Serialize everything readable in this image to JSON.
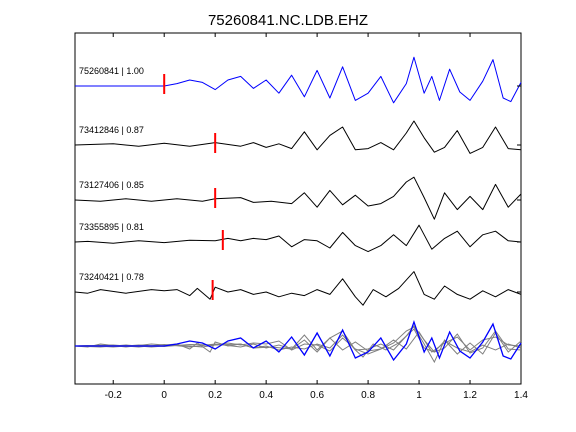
{
  "chart_data": {
    "type": "line",
    "title": "75260841.NC.LDB.EHZ",
    "xlabel": "",
    "ylabel": "",
    "xlim": [
      -0.35,
      1.4
    ],
    "xticks": [
      -0.2,
      0,
      0.2,
      0.4,
      0.6,
      0.8,
      1,
      1.2,
      1.4
    ],
    "xtick_labels": [
      "-0.2",
      "0",
      "0.2",
      "0.4",
      "0.6",
      "0.8",
      "1",
      "1.2",
      "1.4"
    ],
    "grid": false,
    "colors": {
      "master": "#0000ff",
      "trace": "#000000",
      "pick": "#ff0000",
      "overlay": "#808080"
    },
    "series": [
      {
        "label": "75260841 | 1.00",
        "pick_time": 0.0,
        "color": "#0000ff",
        "trace": [
          [
            -0.35,
            0
          ],
          [
            0,
            0
          ],
          [
            0.05,
            0.2
          ],
          [
            0.1,
            0.5
          ],
          [
            0.15,
            0.3
          ],
          [
            0.2,
            -0.3
          ],
          [
            0.25,
            0.5
          ],
          [
            0.3,
            0.8
          ],
          [
            0.35,
            -0.2
          ],
          [
            0.4,
            0.5
          ],
          [
            0.45,
            -0.6
          ],
          [
            0.5,
            0.9
          ],
          [
            0.55,
            -0.9
          ],
          [
            0.6,
            1.3
          ],
          [
            0.65,
            -1.0
          ],
          [
            0.7,
            1.6
          ],
          [
            0.75,
            -1.2
          ],
          [
            0.8,
            -0.6
          ],
          [
            0.85,
            0.8
          ],
          [
            0.9,
            -1.4
          ],
          [
            0.95,
            0.2
          ],
          [
            0.98,
            2.4
          ],
          [
            1.02,
            -0.6
          ],
          [
            1.05,
            0.8
          ],
          [
            1.08,
            -1.2
          ],
          [
            1.12,
            1.4
          ],
          [
            1.16,
            -0.5
          ],
          [
            1.2,
            -1.2
          ],
          [
            1.25,
            0.4
          ],
          [
            1.29,
            2.2
          ],
          [
            1.33,
            -1.0
          ],
          [
            1.36,
            -1.3
          ],
          [
            1.4,
            0.3
          ]
        ]
      },
      {
        "label": "73412846 | 0.87",
        "pick_time": 0.2,
        "color": "#000000",
        "trace": [
          [
            -0.35,
            0
          ],
          [
            -0.2,
            0.1
          ],
          [
            -0.1,
            -0.1
          ],
          [
            0,
            0.15
          ],
          [
            0.1,
            -0.1
          ],
          [
            0.2,
            0.2
          ],
          [
            0.3,
            -0.1
          ],
          [
            0.35,
            0.2
          ],
          [
            0.4,
            -0.2
          ],
          [
            0.45,
            0.1
          ],
          [
            0.5,
            -0.3
          ],
          [
            0.55,
            1.1
          ],
          [
            0.6,
            -0.4
          ],
          [
            0.65,
            0.8
          ],
          [
            0.7,
            1.5
          ],
          [
            0.75,
            -0.4
          ],
          [
            0.8,
            -0.3
          ],
          [
            0.85,
            0.2
          ],
          [
            0.9,
            -0.4
          ],
          [
            0.95,
            1.0
          ],
          [
            0.98,
            2.0
          ],
          [
            1.02,
            0.6
          ],
          [
            1.06,
            -0.6
          ],
          [
            1.1,
            -0.2
          ],
          [
            1.15,
            1.2
          ],
          [
            1.2,
            -0.7
          ],
          [
            1.25,
            -0.2
          ],
          [
            1.3,
            1.5
          ],
          [
            1.35,
            -0.3
          ],
          [
            1.4,
            -0.4
          ]
        ]
      },
      {
        "label": "73127406 | 0.85",
        "pick_time": 0.2,
        "color": "#000000",
        "trace": [
          [
            -0.35,
            0
          ],
          [
            -0.25,
            -0.1
          ],
          [
            -0.15,
            0.1
          ],
          [
            -0.05,
            -0.1
          ],
          [
            0.05,
            0.1
          ],
          [
            0.15,
            -0.1
          ],
          [
            0.2,
            0.1
          ],
          [
            0.3,
            0.2
          ],
          [
            0.35,
            -0.2
          ],
          [
            0.42,
            -0.1
          ],
          [
            0.5,
            -0.3
          ],
          [
            0.55,
            0.6
          ],
          [
            0.6,
            -0.6
          ],
          [
            0.65,
            0.8
          ],
          [
            0.7,
            -0.4
          ],
          [
            0.75,
            0.4
          ],
          [
            0.8,
            -0.5
          ],
          [
            0.85,
            -0.3
          ],
          [
            0.9,
            0.3
          ],
          [
            0.95,
            1.5
          ],
          [
            0.98,
            1.9
          ],
          [
            1.02,
            0.2
          ],
          [
            1.06,
            -1.6
          ],
          [
            1.1,
            0.6
          ],
          [
            1.15,
            -0.8
          ],
          [
            1.2,
            0.3
          ],
          [
            1.25,
            -0.8
          ],
          [
            1.3,
            1.3
          ],
          [
            1.35,
            -0.6
          ],
          [
            1.4,
            0.5
          ]
        ]
      },
      {
        "label": "73355895 | 0.81",
        "pick_time": 0.23,
        "color": "#000000",
        "trace": [
          [
            -0.35,
            0
          ],
          [
            -0.3,
            0.05
          ],
          [
            -0.2,
            -0.1
          ],
          [
            -0.1,
            0.1
          ],
          [
            0,
            -0.05
          ],
          [
            0.1,
            0.15
          ],
          [
            0.2,
            0.1
          ],
          [
            0.25,
            0.3
          ],
          [
            0.3,
            0.1
          ],
          [
            0.35,
            0.3
          ],
          [
            0.4,
            0.2
          ],
          [
            0.45,
            0.5
          ],
          [
            0.5,
            -0.4
          ],
          [
            0.55,
            0.2
          ],
          [
            0.6,
            0.1
          ],
          [
            0.65,
            -0.5
          ],
          [
            0.7,
            0.8
          ],
          [
            0.75,
            -0.3
          ],
          [
            0.8,
            -0.8
          ],
          [
            0.85,
            -0.3
          ],
          [
            0.9,
            0.6
          ],
          [
            0.95,
            -0.3
          ],
          [
            1.0,
            1.4
          ],
          [
            1.05,
            -0.6
          ],
          [
            1.1,
            0.3
          ],
          [
            1.15,
            0.9
          ],
          [
            1.2,
            -0.4
          ],
          [
            1.25,
            0.6
          ],
          [
            1.3,
            0.9
          ],
          [
            1.35,
            0.1
          ],
          [
            1.4,
            0.0
          ]
        ]
      },
      {
        "label": "73240421 | 0.78",
        "pick_time": 0.19,
        "color": "#000000",
        "trace": [
          [
            -0.35,
            0
          ],
          [
            -0.3,
            -0.1
          ],
          [
            -0.25,
            0.2
          ],
          [
            -0.15,
            -0.1
          ],
          [
            -0.05,
            0.2
          ],
          [
            0.0,
            0.1
          ],
          [
            0.05,
            0.2
          ],
          [
            0.1,
            -0.3
          ],
          [
            0.13,
            0.3
          ],
          [
            0.18,
            -0.6
          ],
          [
            0.2,
            0.4
          ],
          [
            0.25,
            0.0
          ],
          [
            0.3,
            0.2
          ],
          [
            0.35,
            -0.2
          ],
          [
            0.4,
            0.0
          ],
          [
            0.45,
            -0.4
          ],
          [
            0.5,
            -0.1
          ],
          [
            0.55,
            -0.3
          ],
          [
            0.6,
            0.2
          ],
          [
            0.65,
            -0.2
          ],
          [
            0.7,
            1.1
          ],
          [
            0.75,
            -0.4
          ],
          [
            0.78,
            -1.1
          ],
          [
            0.82,
            0.2
          ],
          [
            0.87,
            -0.4
          ],
          [
            0.92,
            0.3
          ],
          [
            0.98,
            1.7
          ],
          [
            1.02,
            -0.2
          ],
          [
            1.06,
            -0.6
          ],
          [
            1.1,
            0.5
          ],
          [
            1.15,
            -0.2
          ],
          [
            1.2,
            -0.6
          ],
          [
            1.25,
            0.1
          ],
          [
            1.3,
            -0.4
          ],
          [
            1.35,
            0.2
          ],
          [
            1.4,
            -0.2
          ]
        ]
      }
    ],
    "overlay": {
      "description_trace_count": 5
    }
  }
}
